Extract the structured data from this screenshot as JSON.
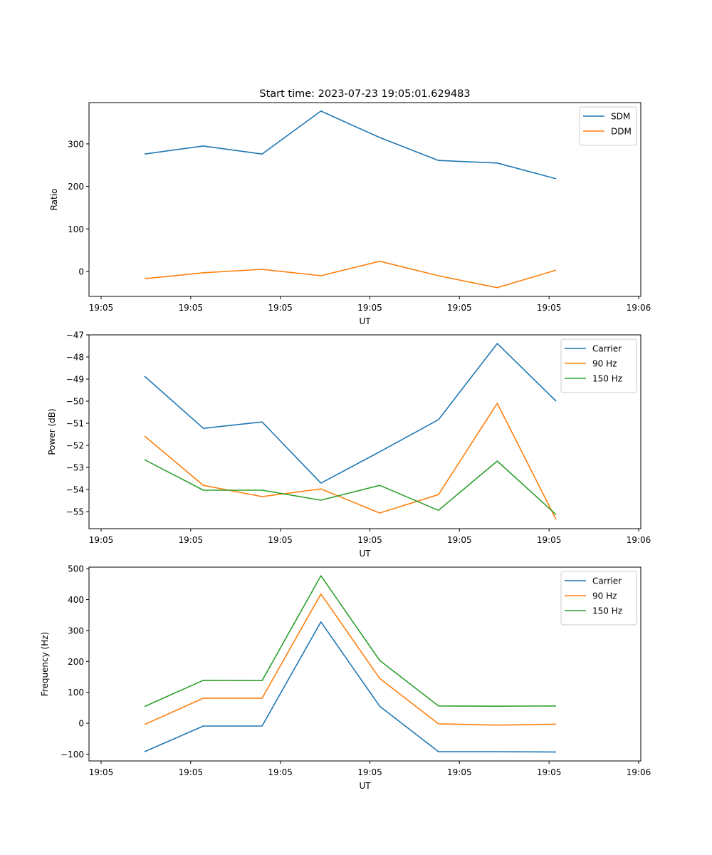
{
  "chart_data": [
    {
      "type": "line",
      "title": "Start time: 2023-07-23 19:05:01.629483",
      "xlabel": "UT",
      "ylabel": "Ratio",
      "x_tick_labels": [
        "19:05",
        "19:05",
        "19:05",
        "19:05",
        "19:05",
        "19:05",
        "19:06"
      ],
      "x_range_ticks": [
        -0.2,
        8.9
      ],
      "x": [
        1,
        2,
        3,
        4,
        5,
        6,
        7,
        8
      ],
      "ylim": [
        -58.6,
        397
      ],
      "yticks": [
        0,
        100,
        200,
        300
      ],
      "legend_position": "upper-right",
      "grid": false,
      "series": [
        {
          "name": "SDM",
          "color": "#1f77b4",
          "values": [
            276,
            295,
            276,
            377,
            315,
            261,
            255,
            218
          ]
        },
        {
          "name": "DDM",
          "color": "#ff7f0e",
          "values": [
            -17,
            -3,
            5,
            -10,
            24,
            -10,
            -38,
            3
          ]
        }
      ]
    },
    {
      "type": "line",
      "title": "",
      "xlabel": "UT",
      "ylabel": "Power (dB)",
      "x_tick_labels": [
        "19:05",
        "19:05",
        "19:05",
        "19:05",
        "19:05",
        "19:05",
        "19:06"
      ],
      "x": [
        1,
        2,
        3,
        4,
        5,
        6,
        7,
        8
      ],
      "ylim": [
        -55.77,
        -47
      ],
      "yticks": [
        -55,
        -54,
        -53,
        -52,
        -51,
        -50,
        -49,
        -48,
        -47
      ],
      "legend_position": "upper-right",
      "grid": false,
      "series": [
        {
          "name": "Carrier",
          "color": "#1f77b4",
          "values": [
            -48.87,
            -51.23,
            -50.94,
            -53.71,
            -52.29,
            -50.84,
            -47.39,
            -50.0
          ]
        },
        {
          "name": "90 Hz",
          "color": "#ff7f0e",
          "values": [
            -51.58,
            -53.81,
            -54.32,
            -53.97,
            -55.06,
            -54.23,
            -50.1,
            -55.35
          ]
        },
        {
          "name": "150 Hz",
          "color": "#2ca02c",
          "values": [
            -52.65,
            -54.03,
            -54.03,
            -54.48,
            -53.81,
            -54.94,
            -52.71,
            -55.13
          ]
        }
      ]
    },
    {
      "type": "line",
      "title": "",
      "xlabel": "UT",
      "ylabel": "Frequency (Hz)",
      "x_tick_labels": [
        "19:05",
        "19:05",
        "19:05",
        "19:05",
        "19:05",
        "19:05",
        "19:06"
      ],
      "x": [
        1,
        2,
        3,
        4,
        5,
        6,
        7,
        8
      ],
      "ylim": [
        -122,
        505
      ],
      "yticks": [
        -100,
        0,
        100,
        200,
        300,
        400,
        500
      ],
      "legend_position": "upper-right",
      "grid": false,
      "series": [
        {
          "name": "Carrier",
          "color": "#1f77b4",
          "values": [
            -92,
            -9,
            -9,
            328,
            55,
            -92,
            -92,
            -93
          ]
        },
        {
          "name": "90 Hz",
          "color": "#ff7f0e",
          "values": [
            -4,
            81,
            81,
            418,
            145,
            -2,
            -6,
            -3
          ]
        },
        {
          "name": "150 Hz",
          "color": "#2ca02c",
          "values": [
            54,
            139,
            138,
            477,
            203,
            56,
            55,
            56
          ]
        }
      ]
    }
  ]
}
